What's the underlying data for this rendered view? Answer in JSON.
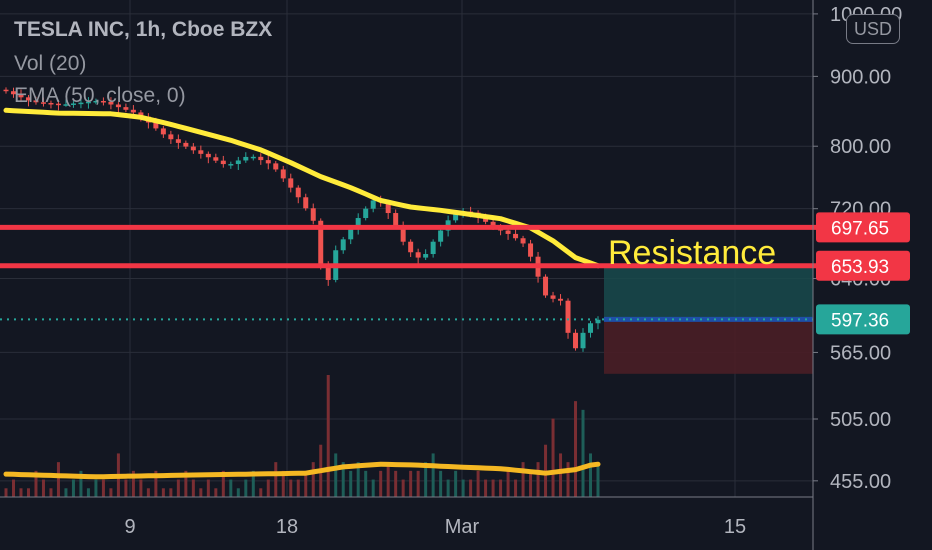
{
  "header": {
    "title": "TESLA INC, 1h, Cboe BZX",
    "volume_label": "Vol (20)",
    "ema_label": "EMA (50, close, 0)"
  },
  "currency_button": "USD",
  "colors": {
    "background": "#131722",
    "grid": "#2a2e39",
    "candle_up": "#26a69a",
    "candle_down": "#ef5350",
    "ema": "#ffeb3b",
    "volume_ma": "#f5b823",
    "resistance": "#f23645",
    "current_price": "#26a69a",
    "target_zone": "#194a4c",
    "stop_zone": "#4a1e26",
    "entry_line": "#1e4fa8"
  },
  "chart_data": {
    "type": "candlestick",
    "symbol": "TESLA INC",
    "interval": "1h",
    "exchange": "Cboe BZX",
    "x_axis_labels": [
      "9",
      "18",
      "Mar",
      "15"
    ],
    "y_axis_ticks": [
      "1000.00",
      "900.00",
      "800.00",
      "720.00",
      "640.00",
      "565.00",
      "505.00",
      "455.00"
    ],
    "y_scale": "log",
    "ylim": [
      445,
      1010
    ],
    "price_path": [
      [
        0,
        880
      ],
      [
        4,
        862
      ],
      [
        8,
        858
      ],
      [
        13,
        864
      ],
      [
        18,
        845
      ],
      [
        22,
        812
      ],
      [
        26,
        792
      ],
      [
        30,
        774
      ],
      [
        33,
        788
      ],
      [
        36,
        775
      ],
      [
        38,
        752
      ],
      [
        40,
        728
      ],
      [
        42,
        698
      ],
      [
        43,
        612
      ],
      [
        44,
        665
      ],
      [
        46,
        690
      ],
      [
        48,
        715
      ],
      [
        50,
        735
      ],
      [
        52,
        708
      ],
      [
        54,
        672
      ],
      [
        56,
        660
      ],
      [
        58,
        688
      ],
      [
        60,
        712
      ],
      [
        62,
        718
      ],
      [
        64,
        707
      ],
      [
        66,
        696
      ],
      [
        68,
        688
      ],
      [
        70,
        676
      ],
      [
        71,
        652
      ],
      [
        73,
        612
      ],
      [
        74,
        625
      ],
      [
        75,
        608
      ],
      [
        76,
        560
      ],
      [
        77,
        578
      ],
      [
        78,
        590
      ],
      [
        79,
        597
      ]
    ],
    "ema_50": [
      [
        0,
        850
      ],
      [
        7,
        846
      ],
      [
        14,
        845
      ],
      [
        18,
        840
      ],
      [
        22,
        830
      ],
      [
        26,
        819
      ],
      [
        30,
        808
      ],
      [
        34,
        795
      ],
      [
        38,
        778
      ],
      [
        42,
        760
      ],
      [
        46,
        746
      ],
      [
        50,
        730
      ],
      [
        54,
        722
      ],
      [
        58,
        718
      ],
      [
        62,
        713
      ],
      [
        66,
        708
      ],
      [
        70,
        697
      ],
      [
        73,
        682
      ],
      [
        76,
        663
      ],
      [
        79,
        654
      ]
    ],
    "volume": [
      1,
      2,
      1,
      1,
      3,
      2,
      1,
      4,
      1,
      2,
      3,
      1,
      2,
      2,
      1,
      5,
      2,
      3,
      2,
      1,
      3,
      1,
      1,
      2,
      3,
      2,
      1,
      2,
      1,
      3,
      2,
      1,
      2,
      3,
      1,
      2,
      4,
      3,
      2,
      2,
      3,
      4,
      6,
      14,
      5,
      4,
      3,
      4,
      3,
      2,
      3,
      4,
      3,
      2,
      3,
      3,
      4,
      5,
      3,
      2,
      3,
      2,
      2,
      3,
      2,
      2,
      2,
      3,
      2,
      4,
      3,
      4,
      6,
      9,
      5,
      4,
      11,
      10,
      5,
      4
    ],
    "volume_ma": [
      [
        0,
        0.55
      ],
      [
        12,
        0.4
      ],
      [
        25,
        0.5
      ],
      [
        40,
        0.6
      ],
      [
        45,
        0.95
      ],
      [
        50,
        1.1
      ],
      [
        55,
        1.05
      ],
      [
        60,
        0.95
      ],
      [
        66,
        0.85
      ],
      [
        72,
        0.6
      ],
      [
        76,
        0.8
      ],
      [
        78,
        1.05
      ],
      [
        79,
        1.1
      ]
    ],
    "annotations": [
      {
        "type": "horizontal_line",
        "label": "697.65",
        "value": 697.65
      },
      {
        "type": "horizontal_line",
        "label": "653.93",
        "value": 653.93
      },
      {
        "type": "current_price_line",
        "label": "597.36",
        "value": 597.36
      },
      {
        "type": "text",
        "text": "Resistance"
      }
    ],
    "position_tool": {
      "entry": 597.36,
      "target": 653.93,
      "stop": 545
    }
  }
}
